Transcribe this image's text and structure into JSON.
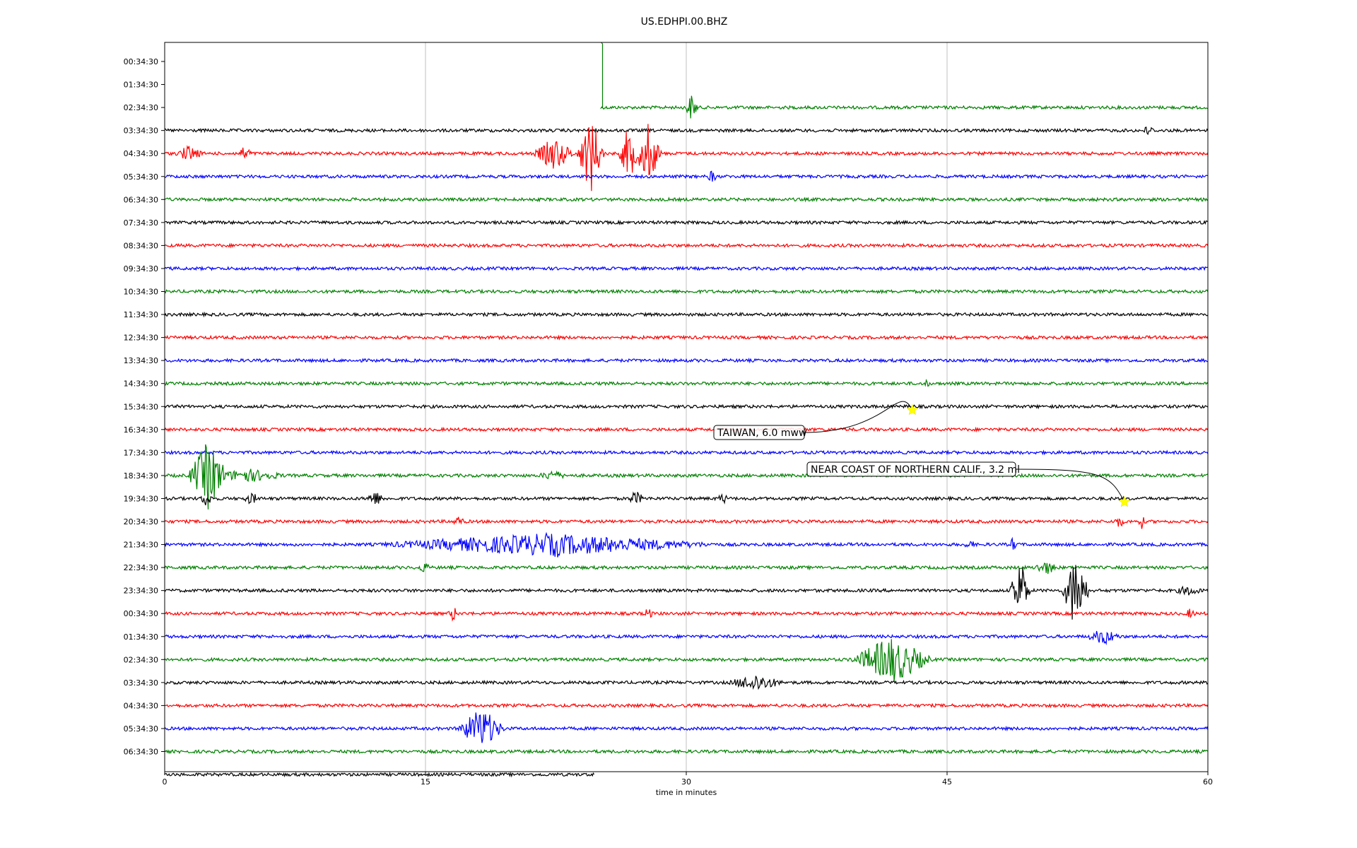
{
  "chart_data": {
    "type": "line",
    "title": "US.EDHPI.00.BHZ",
    "xlabel": "time in minutes",
    "ylabel": "",
    "xlim": [
      0,
      60
    ],
    "x_ticks": [
      0,
      15,
      30,
      45,
      60
    ],
    "grid": "vertical",
    "colors": [
      "#ff0000",
      "#0000ff",
      "#008000",
      "#000000"
    ],
    "rows": [
      {
        "label": "00:34:30",
        "present": false
      },
      {
        "label": "01:34:30",
        "present": false
      },
      {
        "label": "02:34:30",
        "present": true,
        "start": 25.1,
        "end": 60,
        "events": [
          {
            "t": 30.3,
            "amp": 18,
            "dur": 0.4
          }
        ]
      },
      {
        "label": "03:34:30",
        "present": true,
        "start": 0,
        "end": 60,
        "events": [
          {
            "t": 56.6,
            "amp": 8,
            "dur": 0.3
          }
        ]
      },
      {
        "label": "04:34:30",
        "present": true,
        "start": 0,
        "end": 60,
        "events": [
          {
            "t": 1.4,
            "amp": 10,
            "dur": 0.8
          },
          {
            "t": 4.6,
            "amp": 8,
            "dur": 0.5
          },
          {
            "t": 22.4,
            "amp": 22,
            "dur": 1.2
          },
          {
            "t": 24.5,
            "amp": 55,
            "dur": 0.8
          },
          {
            "t": 26.7,
            "amp": 38,
            "dur": 0.6
          },
          {
            "t": 27.8,
            "amp": 42,
            "dur": 0.8
          }
        ]
      },
      {
        "label": "05:34:30",
        "present": true,
        "start": 0,
        "end": 60,
        "events": [
          {
            "t": 31.5,
            "amp": 8,
            "dur": 0.3
          }
        ]
      },
      {
        "label": "06:34:30",
        "present": true,
        "start": 0,
        "end": 60,
        "events": []
      },
      {
        "label": "07:34:30",
        "present": true,
        "start": 0,
        "end": 60,
        "events": []
      },
      {
        "label": "08:34:30",
        "present": true,
        "start": 0,
        "end": 60,
        "events": []
      },
      {
        "label": "09:34:30",
        "present": true,
        "start": 0,
        "end": 60,
        "events": []
      },
      {
        "label": "10:34:30",
        "present": true,
        "start": 0,
        "end": 60,
        "events": []
      },
      {
        "label": "11:34:30",
        "present": true,
        "start": 0,
        "end": 60,
        "events": []
      },
      {
        "label": "12:34:30",
        "present": true,
        "start": 0,
        "end": 60,
        "events": []
      },
      {
        "label": "13:34:30",
        "present": true,
        "start": 0,
        "end": 60,
        "events": []
      },
      {
        "label": "14:34:30",
        "present": true,
        "start": 0,
        "end": 60,
        "events": [
          {
            "t": 43.8,
            "amp": 5,
            "dur": 0.2
          }
        ]
      },
      {
        "label": "15:34:30",
        "present": true,
        "start": 0,
        "end": 60,
        "events": []
      },
      {
        "label": "16:34:30",
        "present": true,
        "start": 0,
        "end": 60,
        "events": []
      },
      {
        "label": "17:34:30",
        "present": true,
        "start": 0,
        "end": 60,
        "events": []
      },
      {
        "label": "18:34:30",
        "present": true,
        "start": 0,
        "end": 60,
        "events": [
          {
            "t": 2.5,
            "amp": 48,
            "dur": 1.2
          },
          {
            "t": 4.8,
            "amp": 8,
            "dur": 2.2
          },
          {
            "t": 22.3,
            "amp": 6,
            "dur": 0.8
          }
        ]
      },
      {
        "label": "19:34:30",
        "present": true,
        "start": 0,
        "end": 60,
        "events": [
          {
            "t": 2.4,
            "amp": 10,
            "dur": 0.4
          },
          {
            "t": 5.0,
            "amp": 7,
            "dur": 0.5
          },
          {
            "t": 12.1,
            "amp": 9,
            "dur": 0.6
          },
          {
            "t": 27.1,
            "amp": 9,
            "dur": 0.5
          },
          {
            "t": 32.1,
            "amp": 7,
            "dur": 0.3
          }
        ]
      },
      {
        "label": "20:34:30",
        "present": true,
        "start": 0,
        "end": 60,
        "events": [
          {
            "t": 16.9,
            "amp": 6,
            "dur": 0.4
          },
          {
            "t": 54.9,
            "amp": 8,
            "dur": 0.3
          },
          {
            "t": 56.2,
            "amp": 9,
            "dur": 0.2
          }
        ]
      },
      {
        "label": "21:34:30",
        "present": true,
        "start": 0,
        "end": 60,
        "events": [
          {
            "t": 22.0,
            "amp": 14,
            "dur": 10.0
          },
          {
            "t": 22.5,
            "amp": 18,
            "dur": 1.0
          },
          {
            "t": 46.3,
            "amp": 7,
            "dur": 0.3
          },
          {
            "t": 48.8,
            "amp": 8,
            "dur": 0.3
          }
        ]
      },
      {
        "label": "22:34:30",
        "present": true,
        "start": 0,
        "end": 60,
        "events": [
          {
            "t": 14.9,
            "amp": 6,
            "dur": 0.4
          },
          {
            "t": 50.7,
            "amp": 8,
            "dur": 0.8
          }
        ]
      },
      {
        "label": "23:34:30",
        "present": true,
        "start": 0,
        "end": 60,
        "events": [
          {
            "t": 49.2,
            "amp": 45,
            "dur": 0.6
          },
          {
            "t": 52.4,
            "amp": 55,
            "dur": 0.8
          },
          {
            "t": 58.9,
            "amp": 6,
            "dur": 0.8
          }
        ]
      },
      {
        "label": "00:34:30",
        "present": true,
        "start": 0,
        "end": 60,
        "events": [
          {
            "t": 16.6,
            "amp": 10,
            "dur": 0.3
          },
          {
            "t": 27.8,
            "amp": 8,
            "dur": 0.3
          },
          {
            "t": 59.0,
            "amp": 6,
            "dur": 0.3
          }
        ]
      },
      {
        "label": "01:34:30",
        "present": true,
        "start": 0,
        "end": 60,
        "events": [
          {
            "t": 54.0,
            "amp": 10,
            "dur": 1.0
          }
        ]
      },
      {
        "label": "02:34:30",
        "present": true,
        "start": 0,
        "end": 60,
        "events": [
          {
            "t": 41.8,
            "amp": 32,
            "dur": 2.4
          }
        ]
      },
      {
        "label": "03:34:30",
        "present": true,
        "start": 0,
        "end": 60,
        "events": [
          {
            "t": 34.0,
            "amp": 11,
            "dur": 1.6
          }
        ]
      },
      {
        "label": "04:34:30",
        "present": true,
        "start": 0,
        "end": 60,
        "events": []
      },
      {
        "label": "05:34:30",
        "present": true,
        "start": 0,
        "end": 60,
        "events": [
          {
            "t": 18.2,
            "amp": 28,
            "dur": 1.4
          }
        ]
      },
      {
        "label": "06:34:30",
        "present": true,
        "start": 0,
        "end": 60,
        "events": []
      },
      {
        "label": "",
        "present": true,
        "start": 0,
        "end": 24.7,
        "events": []
      }
    ],
    "annotations": [
      {
        "text": "TAIWAN, 6.0 mww",
        "star_minute": 43.0,
        "star_row": 15
      },
      {
        "text": "NEAR COAST OF NORTHERN CALIF., 3.2 ml",
        "star_minute": 55.2,
        "star_row": 19
      }
    ]
  }
}
